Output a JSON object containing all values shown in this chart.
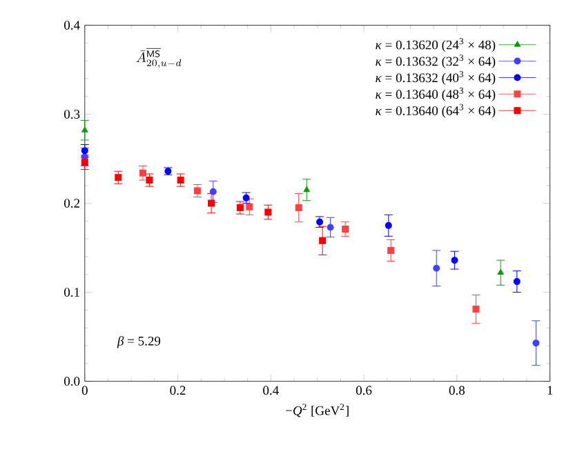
{
  "chart_data": {
    "type": "scatter",
    "xlabel": "−*Q*$^{2}$   [GeV$^{2}$]",
    "annotations": [
      "\\bar{A}^{\\overline{\\mathsf{MS}}}_{20,u-d}",
      "*β* = 5.29"
    ],
    "xlim": [
      0,
      1
    ],
    "ylim": [
      0,
      0.4
    ],
    "xticks": [
      0,
      0.2,
      0.4,
      0.6,
      0.8,
      1
    ],
    "yticks": [
      {
        "value": 0,
        "label": "0.0"
      },
      {
        "value": 0.1,
        "label": "0.1"
      },
      {
        "value": 0.2,
        "label": "0.2"
      },
      {
        "value": 0.3,
        "label": "0.3"
      },
      {
        "value": 0.4,
        "label": "0.4"
      }
    ],
    "legend": "top right",
    "grid": false,
    "series": [
      {
        "name": "*κ* = 0.13620 (24$^{3}$ × 48)",
        "color": "#00a000",
        "marker": "triangle",
        "x": [
          0,
          0.477,
          0.894
        ],
        "values": [
          0.282,
          0.215,
          0.122
        ],
        "errors": [
          0.011,
          0.012,
          0.014
        ]
      },
      {
        "name": "*κ* = 0.13632 (32$^{3}$ × 64)",
        "color": "#4040ff",
        "marker": "circle",
        "x": [
          0,
          0.276,
          0.528,
          0.756,
          0.97
        ],
        "values": [
          0.252,
          0.213,
          0.173,
          0.127,
          0.043
        ],
        "errors": [
          0.01,
          0.012,
          0.011,
          0.02,
          0.025
        ]
      },
      {
        "name": "*κ* = 0.13632 (40$^{3}$ × 64)",
        "color": "#0000ff",
        "marker": "circle",
        "x": [
          0,
          0.179,
          0.347,
          0.505,
          0.653,
          0.795,
          0.929
        ],
        "values": [
          0.259,
          0.236,
          0.206,
          0.179,
          0.175,
          0.136,
          0.112
        ],
        "errors": [
          0.007,
          0.004,
          0.006,
          0.006,
          0.012,
          0.01,
          0.012
        ]
      },
      {
        "name": "*κ* = 0.13640 (48$^{3}$ × 64)",
        "color": "#ff4040",
        "marker": "square",
        "x": [
          0.125,
          0.242,
          0.354,
          0.46,
          0.56,
          0.658,
          0.841
        ],
        "values": [
          0.234,
          0.214,
          0.196,
          0.195,
          0.171,
          0.147,
          0.081
        ],
        "errors": [
          0.008,
          0.007,
          0.009,
          0.016,
          0.008,
          0.012,
          0.016
        ]
      },
      {
        "name": "*κ* = 0.13640 (64$^{3}$ × 64)",
        "color": "#ff0000",
        "marker": "square",
        "x": [
          0,
          0.072,
          0.139,
          0.206,
          0.272,
          0.334,
          0.394,
          0.511
        ],
        "values": [
          0.246,
          0.229,
          0.226,
          0.226,
          0.2,
          0.195,
          0.19,
          0.158
        ],
        "errors": [
          0.008,
          0.007,
          0.007,
          0.007,
          0.011,
          0.007,
          0.008,
          0.016
        ]
      }
    ]
  }
}
